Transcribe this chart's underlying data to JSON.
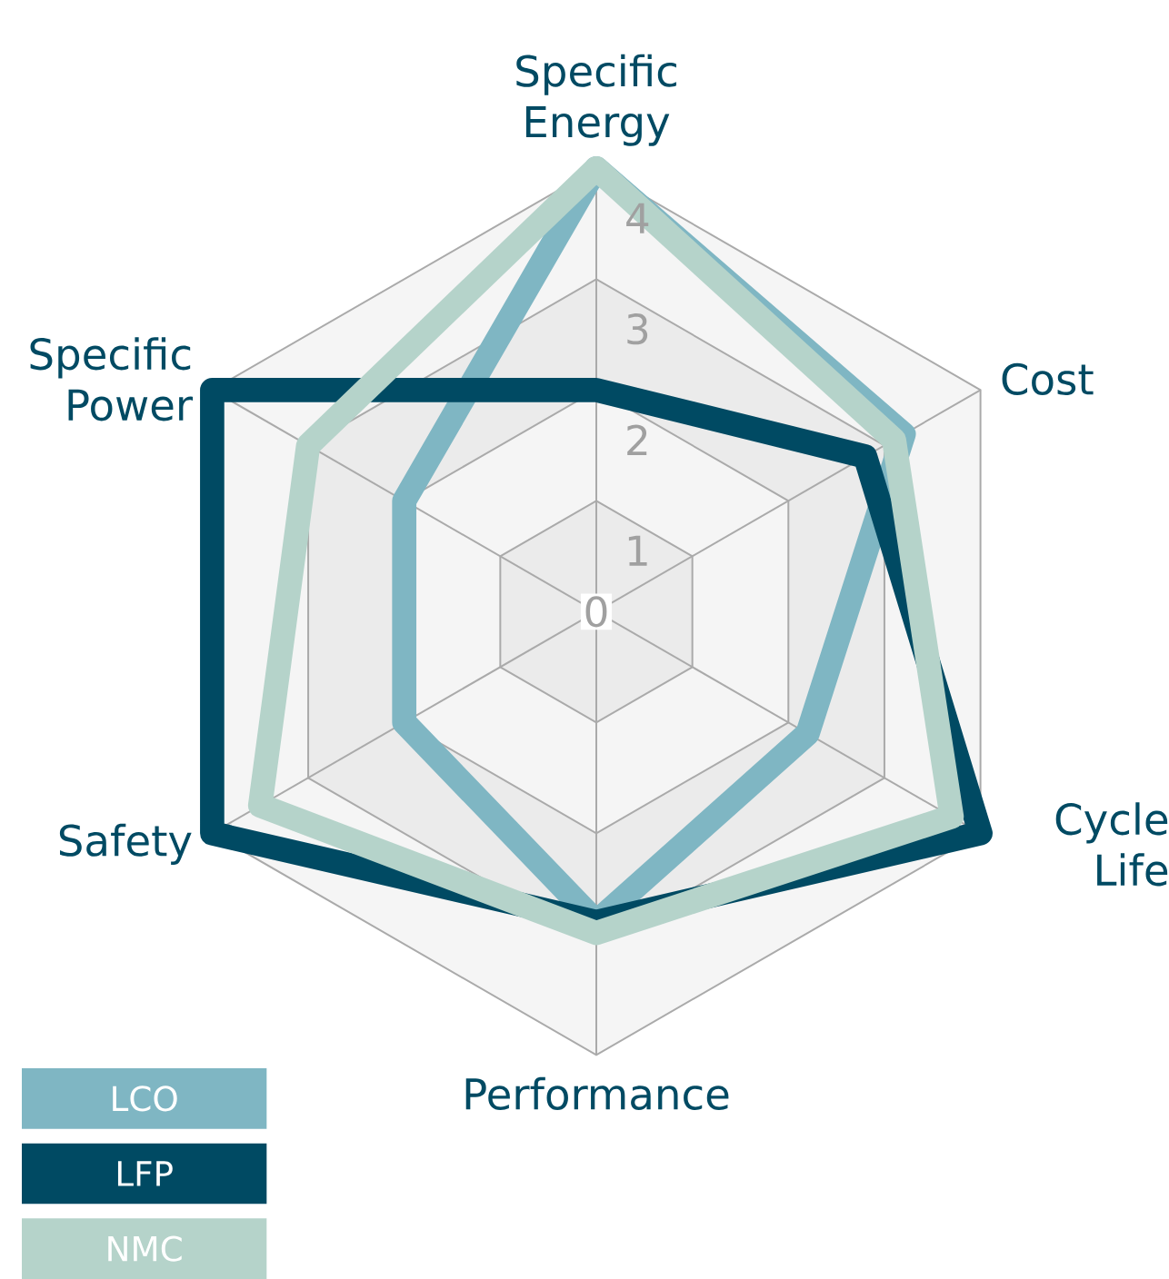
{
  "chart_data": {
    "type": "radar",
    "categories": [
      "Specific Energy",
      "Cost",
      "Cycle Life",
      "Performance",
      "Safety",
      "Specific Power"
    ],
    "series": [
      {
        "name": "LCO",
        "color": "#7fb6c3",
        "values": [
          4.0,
          3.2,
          2.2,
          2.8,
          2.0,
          2.0
        ]
      },
      {
        "name": "LFP",
        "color": "#004a63",
        "values": [
          2.0,
          2.8,
          4.0,
          2.8,
          4.0,
          4.0
        ]
      },
      {
        "name": "NMC",
        "color": "#b5d3ca",
        "values": [
          4.0,
          3.1,
          3.7,
          2.9,
          3.5,
          3.0
        ]
      }
    ],
    "ylim": [
      0,
      4
    ],
    "yticks": [
      0,
      1,
      2,
      3,
      4
    ],
    "grid": true,
    "legend": "bottom left"
  }
}
